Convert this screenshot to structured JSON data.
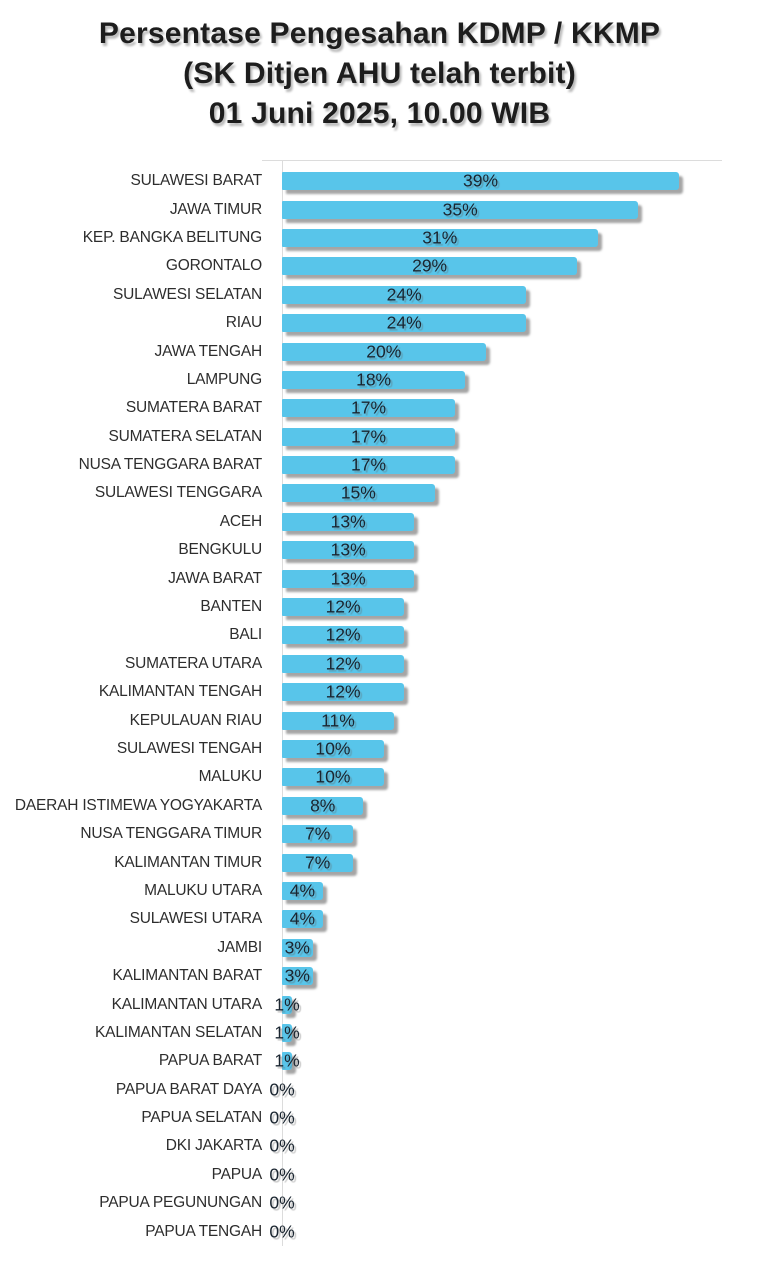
{
  "title": {
    "line1": "Persentase Pengesahan KDMP / KKMP",
    "line2": "(SK Ditjen AHU telah terbit)",
    "line3": "01 Juni 2025, 10.00 WIB"
  },
  "colors": {
    "bar": "#58C5EA",
    "value_label": "#1A2530",
    "category_label": "#2D2D2D",
    "axis_line": "#DCDCDC",
    "background": "#FFFFFF"
  },
  "chart_data": {
    "type": "bar",
    "orientation": "horizontal",
    "title": "Persentase Pengesahan KDMP / KKMP (SK Ditjen AHU telah terbit) 01 Juni 2025, 10.00 WIB",
    "xlabel": "",
    "ylabel": "",
    "xlim": [
      0,
      43
    ],
    "grid": false,
    "legend": false,
    "value_suffix": "%",
    "label_position": "inside-center",
    "categories": [
      "SULAWESI BARAT",
      "JAWA TIMUR",
      "KEP. BANGKA BELITUNG",
      "GORONTALO",
      "SULAWESI SELATAN",
      "RIAU",
      "JAWA TENGAH",
      "LAMPUNG",
      "SUMATERA BARAT",
      "SUMATERA SELATAN",
      "NUSA TENGGARA BARAT",
      "SULAWESI TENGGARA",
      "ACEH",
      "BENGKULU",
      "JAWA BARAT",
      "BANTEN",
      "BALI",
      "SUMATERA UTARA",
      "KALIMANTAN TENGAH",
      "KEPULAUAN RIAU",
      "SULAWESI TENGAH",
      "MALUKU",
      "DAERAH ISTIMEWA YOGYAKARTA",
      "NUSA TENGGARA TIMUR",
      "KALIMANTAN TIMUR",
      "MALUKU UTARA",
      "SULAWESI UTARA",
      "JAMBI",
      "KALIMANTAN BARAT",
      "KALIMANTAN UTARA",
      "KALIMANTAN SELATAN",
      "PAPUA BARAT",
      "PAPUA BARAT DAYA",
      "PAPUA SELATAN",
      "DKI JAKARTA",
      "PAPUA",
      "PAPUA PEGUNUNGAN",
      "PAPUA TENGAH"
    ],
    "values": [
      39,
      35,
      31,
      29,
      24,
      24,
      20,
      18,
      17,
      17,
      17,
      15,
      13,
      13,
      13,
      12,
      12,
      12,
      12,
      11,
      10,
      10,
      8,
      7,
      7,
      4,
      4,
      3,
      3,
      1,
      1,
      1,
      0,
      0,
      0,
      0,
      0,
      0
    ]
  }
}
